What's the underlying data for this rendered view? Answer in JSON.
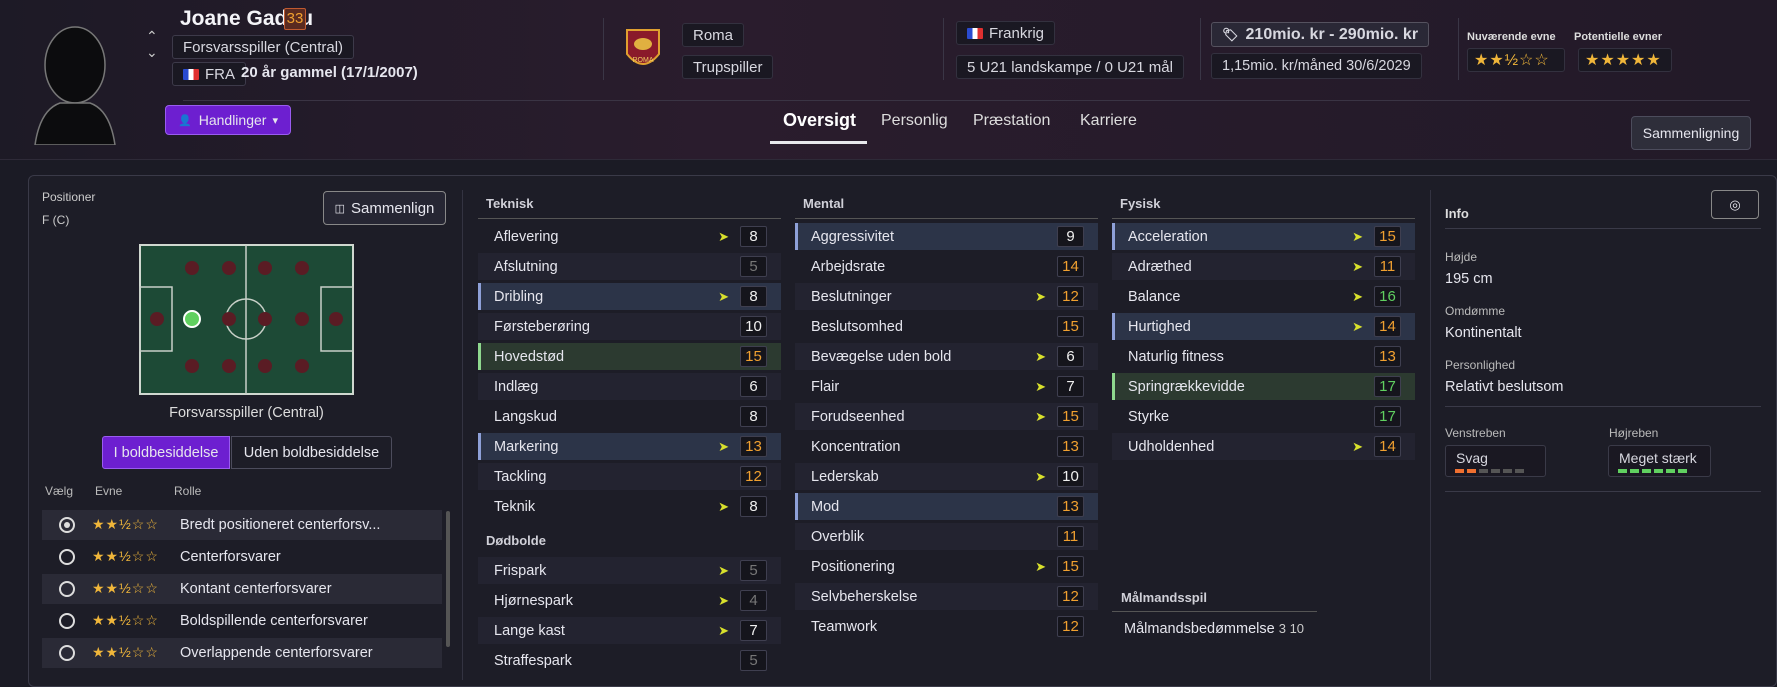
{
  "player": {
    "name": "Joane Gadou",
    "ca": "33",
    "position": "Forsvarsspiller (Central)",
    "nationality_code": "FRA",
    "age": "20 år gammel (17/1/2007)"
  },
  "club": {
    "name": "Roma",
    "squad_status": "Trupspiller",
    "crest_text": "ROMA"
  },
  "nation": {
    "name": "Frankrig",
    "caps": "5 U21 landskampe / 0 U21 mål"
  },
  "value": {
    "range": "210mio. kr - 290mio. kr",
    "wage": "1,15mio. kr/måned",
    "contract_end": "30/6/2029"
  },
  "ability": {
    "current_label": "Nuværende evne",
    "current_stars": "★★½☆☆",
    "potential_label": "Potentielle evner",
    "potential_stars": "★★★★★"
  },
  "buttons": {
    "actions": "Handlinger",
    "compare": "Sammenligning",
    "compare_small": "Sammenlign"
  },
  "tabs": [
    "Oversigt",
    "Personlig",
    "Præstation",
    "Karriere"
  ],
  "positions": {
    "title": "Positioner",
    "value": "F (C)",
    "role_label": "Forsvarsspiller (Central)",
    "in_possession": "I boldbesiddelse",
    "out_possession": "Uden boldbesiddelse"
  },
  "roles_header": {
    "select": "Vælg",
    "ability": "Evne",
    "role": "Rolle"
  },
  "roles": [
    {
      "name": "Bredt positioneret centerforsv...",
      "stars": "★★½☆☆",
      "selected": true
    },
    {
      "name": "Centerforsvarer",
      "stars": "★★½☆☆",
      "selected": false
    },
    {
      "name": "Kontant centerforsvarer",
      "stars": "★★½☆☆",
      "selected": false
    },
    {
      "name": "Boldspillende centerforsvarer",
      "stars": "★★½☆☆",
      "selected": false
    },
    {
      "name": "Overlappende centerforsvarer",
      "stars": "★★½☆☆",
      "selected": false
    }
  ],
  "sections": {
    "technical": "Teknisk",
    "setpieces": "Dødbolde",
    "mental": "Mental",
    "physical": "Fysisk",
    "goalkeeping": "Målmandsspil"
  },
  "technical": [
    {
      "n": "Aflevering",
      "v": "8",
      "c": "w",
      "t": true
    },
    {
      "n": "Afslutning",
      "v": "5",
      "c": "d"
    },
    {
      "n": "Dribling",
      "v": "8",
      "c": "w",
      "t": true
    },
    {
      "n": "Førsteberøring",
      "v": "10",
      "c": "w"
    },
    {
      "n": "Hovedstød",
      "v": "15",
      "c": "o"
    },
    {
      "n": "Indlæg",
      "v": "6",
      "c": "w"
    },
    {
      "n": "Langskud",
      "v": "8",
      "c": "w"
    },
    {
      "n": "Markering",
      "v": "13",
      "c": "o",
      "t": true
    },
    {
      "n": "Tackling",
      "v": "12",
      "c": "o"
    },
    {
      "n": "Teknik",
      "v": "8",
      "c": "w",
      "t": true
    }
  ],
  "setpieces": [
    {
      "n": "Frispark",
      "v": "5",
      "c": "d",
      "t": true
    },
    {
      "n": "Hjørnespark",
      "v": "4",
      "c": "d",
      "t": true
    },
    {
      "n": "Lange kast",
      "v": "7",
      "c": "w",
      "t": true
    },
    {
      "n": "Straffespark",
      "v": "5",
      "c": "d"
    }
  ],
  "mental": [
    {
      "n": "Aggressivitet",
      "v": "9",
      "c": "w"
    },
    {
      "n": "Arbejdsrate",
      "v": "14",
      "c": "o"
    },
    {
      "n": "Beslutninger",
      "v": "12",
      "c": "o",
      "t": true
    },
    {
      "n": "Beslutsomhed",
      "v": "15",
      "c": "o"
    },
    {
      "n": "Bevægelse uden bold",
      "v": "6",
      "c": "w",
      "t": true
    },
    {
      "n": "Flair",
      "v": "7",
      "c": "w",
      "t": true
    },
    {
      "n": "Forudseenhed",
      "v": "15",
      "c": "o",
      "t": true
    },
    {
      "n": "Koncentration",
      "v": "13",
      "c": "o"
    },
    {
      "n": "Lederskab",
      "v": "10",
      "c": "w",
      "t": true
    },
    {
      "n": "Mod",
      "v": "13",
      "c": "o"
    },
    {
      "n": "Overblik",
      "v": "11",
      "c": "o"
    },
    {
      "n": "Positionering",
      "v": "15",
      "c": "o",
      "t": true
    },
    {
      "n": "Selvbeherskelse",
      "v": "12",
      "c": "o"
    },
    {
      "n": "Teamwork",
      "v": "12",
      "c": "o"
    }
  ],
  "physical": [
    {
      "n": "Acceleration",
      "v": "15",
      "c": "o",
      "t": true
    },
    {
      "n": "Adræthed",
      "v": "11",
      "c": "o",
      "t": true
    },
    {
      "n": "Balance",
      "v": "16",
      "c": "g",
      "t": true
    },
    {
      "n": "Hurtighed",
      "v": "14",
      "c": "o",
      "t": true
    },
    {
      "n": "Naturlig fitness",
      "v": "13",
      "c": "o"
    },
    {
      "n": "Springrækkevidde",
      "v": "17",
      "c": "g"
    },
    {
      "n": "Styrke",
      "v": "17",
      "c": "g"
    },
    {
      "n": "Udholdenhed",
      "v": "14",
      "c": "o",
      "t": true
    }
  ],
  "goalkeeping": {
    "label": "Målmandsbedømmelse",
    "value": "3 10"
  },
  "info": {
    "title": "Info",
    "height_label": "Højde",
    "height": "195 cm",
    "rep_label": "Omdømme",
    "rep": "Kontinentalt",
    "pers_label": "Personlighed",
    "pers": "Relativt beslutsom",
    "left_label": "Venstreben",
    "left": "Svag",
    "right_label": "Højreben",
    "right": "Meget stærk"
  },
  "colors": {
    "accent": "#7a22d8",
    "orange": "#f0a030",
    "green": "#60d060"
  }
}
